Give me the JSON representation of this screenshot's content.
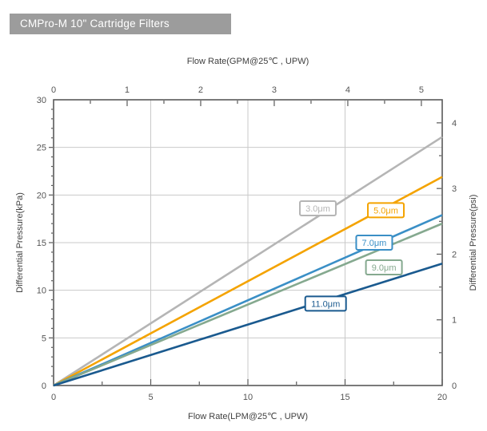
{
  "header": {
    "title": "CMPro-M 10\" Cartridge Filters",
    "background": "#9C9C9C"
  },
  "chart_data": {
    "type": "line",
    "title": "CMPro-M 10\" Cartridge Filters flow rate vs differential pressure",
    "grid": {
      "x_step_lpm": 5,
      "y_step_kpa": 5
    },
    "axes": {
      "top": {
        "label": "Flow Rate(GPM@25℃ ,  UPW)",
        "unit": "GPM",
        "ticks": [
          0,
          1,
          2,
          3,
          4,
          5
        ],
        "lpm_per_gpm": 3.7854,
        "minor_step": 0.5
      },
      "bottom": {
        "label": "Flow Rate(LPM@25℃ ,  UPW)",
        "unit": "LPM",
        "ticks": [
          0,
          5,
          10,
          15,
          20
        ],
        "range": [
          0,
          20
        ],
        "minor_step": 2.5
      },
      "left": {
        "label": "Differential Pressure(kPa)",
        "unit": "kPa",
        "ticks": [
          0,
          5,
          10,
          15,
          20,
          25,
          30
        ],
        "range": [
          0,
          30
        ],
        "minor_step": 1
      },
      "right": {
        "label": "Differential Pressure(psi)",
        "unit": "psi",
        "ticks": [
          0,
          1,
          2,
          3,
          4
        ],
        "kpa_per_psi": 6.8948,
        "minor_step": 0.5
      }
    },
    "series": [
      {
        "name": "3.0μm",
        "color": "#B5B5B5",
        "x": [
          0,
          20
        ],
        "y": [
          0,
          26.1
        ],
        "label_at": {
          "x": 13.6,
          "y": 18.6
        }
      },
      {
        "name": "5.0μm",
        "color": "#F4A300",
        "x": [
          0,
          20
        ],
        "y": [
          0,
          21.9
        ],
        "label_at": {
          "x": 17.1,
          "y": 18.4
        }
      },
      {
        "name": "7.0μm",
        "color": "#3A8FC6",
        "x": [
          0,
          20
        ],
        "y": [
          0,
          17.9
        ],
        "label_at": {
          "x": 16.5,
          "y": 15.0
        }
      },
      {
        "name": "9.0μm",
        "color": "#85A98F",
        "x": [
          0,
          20
        ],
        "y": [
          0,
          17.0
        ],
        "label_at": {
          "x": 17.0,
          "y": 12.4
        }
      },
      {
        "name": "11.0μm",
        "color": "#1A5A8F",
        "x": [
          0,
          20
        ],
        "y": [
          0,
          12.8
        ],
        "label_at": {
          "x": 14.0,
          "y": 8.6
        }
      }
    ]
  }
}
